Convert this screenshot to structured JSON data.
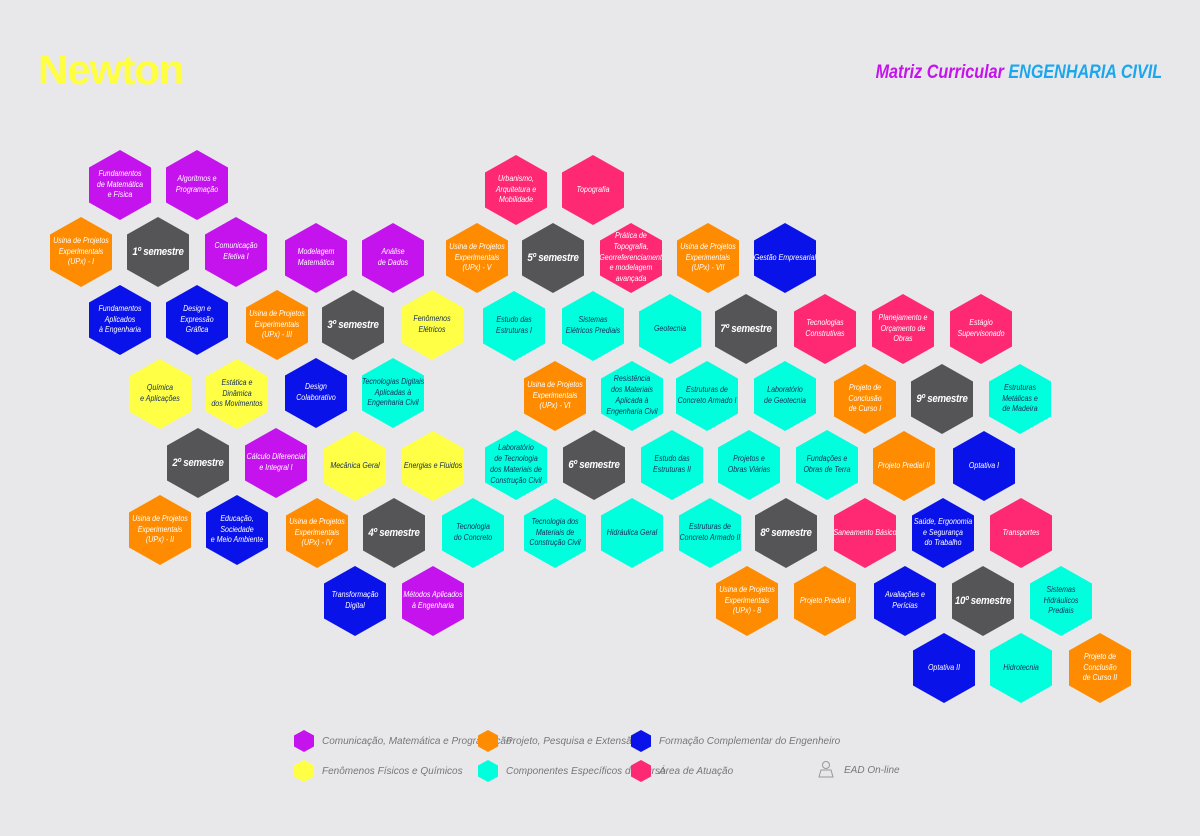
{
  "header": {
    "logo": "Newton",
    "title_prefix": "Matriz Curricular",
    "title_course": "ENGENHARIA CIVIL"
  },
  "colors": {
    "P": "#c513ee",
    "O": "#ff8c00",
    "B": "#0a12ea",
    "Y": "#ffff45",
    "C": "#00ffdd",
    "K": "#ff2873",
    "G": "#555558"
  },
  "hexes": [
    {
      "cat": "P",
      "label": "Fundamentos\nde Matemática\ne Física"
    },
    {
      "cat": "P",
      "label": "Algoritmos e\nProgramação"
    },
    {
      "cat": "O",
      "label": "Usina de Projetos\nExperimentais\n(UPx) - I"
    },
    {
      "cat": "G",
      "label": "1º semestre"
    },
    {
      "cat": "P",
      "label": "Comunicação\nEfetiva I"
    },
    {
      "cat": "P",
      "label": "Modelagem\nMatemática"
    },
    {
      "cat": "P",
      "label": "Análise\nde Dados"
    },
    {
      "cat": "O",
      "label": "Usina de Projetos\nExperimentais\n(UPx) - V"
    },
    {
      "cat": "G",
      "label": "5º semestre"
    },
    {
      "cat": "K",
      "label": "Prática de Topografia,\nGeorreferenciamento\ne modelagem avançada"
    },
    {
      "cat": "O",
      "label": "Usina de Projetos\nExperimentais\n(UPx) - VII"
    },
    {
      "cat": "B",
      "label": "Gestão Empresarial"
    },
    {
      "cat": "K",
      "label": "Urbanismo,\nArquitetura e\nMobilidade"
    },
    {
      "cat": "K",
      "label": "Topografia"
    },
    {
      "cat": "B",
      "label": "Fundamentos\nAplicados\nà Engenharia"
    },
    {
      "cat": "B",
      "label": "Design e\nExpressão\nGráfica"
    },
    {
      "cat": "O",
      "label": "Usina de Projetos\nExperimentais\n(UPx) - III"
    },
    {
      "cat": "G",
      "label": "3º semestre"
    },
    {
      "cat": "Y",
      "label": "Fenômenos\nElétricos"
    },
    {
      "cat": "C",
      "label": "Estudo das\nEstruturas I"
    },
    {
      "cat": "C",
      "label": "Sistemas\nElétricos Prediais"
    },
    {
      "cat": "C",
      "label": "Geotecnia"
    },
    {
      "cat": "G",
      "label": "7º semestre"
    },
    {
      "cat": "K",
      "label": "Tecnologias\nConstrutivas"
    },
    {
      "cat": "K",
      "label": "Planejamento e\nOrçamento de Obras"
    },
    {
      "cat": "K",
      "label": "Estágio\nSupervisonado"
    },
    {
      "cat": "Y",
      "label": "Química\ne Aplicações"
    },
    {
      "cat": "Y",
      "label": "Estática e\nDinâmica\ndos Movimentos"
    },
    {
      "cat": "B",
      "label": "Design Colaborativo"
    },
    {
      "cat": "C",
      "label": "Tecnologias Digitais\nAplicadas à\nEngenharia Civil"
    },
    {
      "cat": "O",
      "label": "Usina de Projetos\nExperimentais\n(UPx) - VI"
    },
    {
      "cat": "C",
      "label": "Resistência\ndos Materiais\nAplicada à\nEngenharia Civil"
    },
    {
      "cat": "C",
      "label": "Estruturas de\nConcreto Armado I"
    },
    {
      "cat": "C",
      "label": "Laboratório\nde Geotecnia"
    },
    {
      "cat": "O",
      "label": "Projeto de\nConclusão\nde Curso I"
    },
    {
      "cat": "G",
      "label": "9º semestre"
    },
    {
      "cat": "C",
      "label": "Estruturas\nMetálicas e\nde Madeira"
    },
    {
      "cat": "G",
      "label": "2º semestre"
    },
    {
      "cat": "P",
      "label": "Cálculo Diferencial\ne Integral I"
    },
    {
      "cat": "Y",
      "label": "Mecânica Geral"
    },
    {
      "cat": "Y",
      "label": "Energias e Fluidos"
    },
    {
      "cat": "C",
      "label": "Laboratório\nde Tecnologia\ndos Materiais de\nConstrução Civil"
    },
    {
      "cat": "G",
      "label": "6º semestre"
    },
    {
      "cat": "C",
      "label": "Estudo das\nEstruturas II"
    },
    {
      "cat": "C",
      "label": "Projetos e\nObras Viárias"
    },
    {
      "cat": "C",
      "label": "Fundações e\nObras de Terra"
    },
    {
      "cat": "O",
      "label": "Projeto Predial II"
    },
    {
      "cat": "B",
      "label": "Optativa I"
    },
    {
      "cat": "O",
      "label": "Usina de Projetos\nExperimentais\n(UPx) - II"
    },
    {
      "cat": "B",
      "label": "Educação,\nSociedade\ne Meio Ambiente"
    },
    {
      "cat": "O",
      "label": "Usina de Projetos\nExperimentais\n(UPx) - IV"
    },
    {
      "cat": "G",
      "label": "4º semestre"
    },
    {
      "cat": "C",
      "label": "Tecnologia\ndo Concreto"
    },
    {
      "cat": "C",
      "label": "Tecnologia dos\nMateriais de\nConstrução Civil"
    },
    {
      "cat": "C",
      "label": "Hidráulica Geral"
    },
    {
      "cat": "C",
      "label": "Estruturas de\nConcreto Armado II"
    },
    {
      "cat": "G",
      "label": "8º semestre"
    },
    {
      "cat": "K",
      "label": "Saneamento Básico"
    },
    {
      "cat": "B",
      "label": "Saúde, Ergonomia\ne Segurança\ndo Trabalho"
    },
    {
      "cat": "K",
      "label": "Transportes"
    },
    {
      "cat": "B",
      "label": "Transformação Digital"
    },
    {
      "cat": "P",
      "label": "Métodos Aplicados\nà Engenharia"
    },
    {
      "cat": "O",
      "label": "Usina de Projetos\nExperimentais\n(UPx) - 8"
    },
    {
      "cat": "O",
      "label": "Projeto Predial I"
    },
    {
      "cat": "B",
      "label": "Avaliações e Perícias"
    },
    {
      "cat": "G",
      "label": "10º semestre"
    },
    {
      "cat": "C",
      "label": "Sistemas\nHidráulicos\nPrediais"
    },
    {
      "cat": "B",
      "label": "Optativa II"
    },
    {
      "cat": "C",
      "label": "Hidrotecnia"
    },
    {
      "cat": "O",
      "label": "Projeto de\nConclusão\nde Curso II"
    }
  ],
  "legend": [
    {
      "cat": "P",
      "label": "Comunicação, Matemática e Programação"
    },
    {
      "cat": "O",
      "label": "Projeto, Pesquisa e Extensão"
    },
    {
      "cat": "B",
      "label": "Formação Complementar do Engenheiro"
    },
    {
      "cat": "Y",
      "label": "Fenômenos Físicos e Químicos"
    },
    {
      "cat": "C",
      "label": "Componentes Específicos do Curso"
    },
    {
      "cat": "K",
      "label": "Área de Atuação"
    }
  ],
  "ead": {
    "icon": "person-laptop-icon",
    "label": "EAD On-line"
  }
}
